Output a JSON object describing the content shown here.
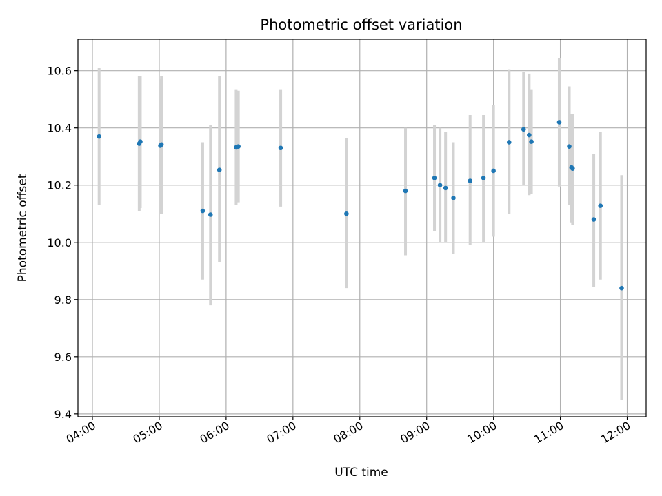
{
  "chart_data": {
    "type": "scatter",
    "title": "Photometric offset variation",
    "xlabel": "UTC time",
    "ylabel": "Photometric offset",
    "xlim": [
      "03:47",
      "12:17"
    ],
    "ylim": [
      9.39,
      10.71
    ],
    "xticks": [
      "04:00",
      "05:00",
      "06:00",
      "07:00",
      "08:00",
      "09:00",
      "10:00",
      "11:00",
      "12:00"
    ],
    "yticks": [
      9.4,
      9.6,
      9.8,
      10.0,
      10.2,
      10.4,
      10.6
    ],
    "ytick_labels": [
      "9.4",
      "9.6",
      "9.8",
      "10.0",
      "10.2",
      "10.4",
      "10.6"
    ],
    "grid": true,
    "marker_color": "#1f77b4",
    "errorbar_color": "#d3d3d3",
    "points": [
      {
        "t": "04:06",
        "y": 10.37,
        "lo": 10.13,
        "hi": 10.61
      },
      {
        "t": "04:42",
        "y": 10.345,
        "lo": 10.11,
        "hi": 10.58
      },
      {
        "t": "04:43",
        "y": 10.352,
        "lo": 10.12,
        "hi": 10.58
      },
      {
        "t": "05:01",
        "y": 10.338,
        "lo": 10.1,
        "hi": 10.57
      },
      {
        "t": "05:02",
        "y": 10.342,
        "lo": 10.1,
        "hi": 10.58
      },
      {
        "t": "05:39",
        "y": 10.11,
        "lo": 9.87,
        "hi": 10.35
      },
      {
        "t": "05:46",
        "y": 10.097,
        "lo": 9.78,
        "hi": 10.41
      },
      {
        "t": "05:54",
        "y": 10.253,
        "lo": 9.93,
        "hi": 10.58
      },
      {
        "t": "06:09",
        "y": 10.332,
        "lo": 10.13,
        "hi": 10.535
      },
      {
        "t": "06:11",
        "y": 10.335,
        "lo": 10.14,
        "hi": 10.53
      },
      {
        "t": "06:49",
        "y": 10.33,
        "lo": 10.125,
        "hi": 10.535
      },
      {
        "t": "07:48",
        "y": 10.1,
        "lo": 9.84,
        "hi": 10.365
      },
      {
        "t": "08:41",
        "y": 10.18,
        "lo": 9.955,
        "hi": 10.4
      },
      {
        "t": "09:07",
        "y": 10.225,
        "lo": 10.04,
        "hi": 10.41
      },
      {
        "t": "09:12",
        "y": 10.2,
        "lo": 10.0,
        "hi": 10.4
      },
      {
        "t": "09:17",
        "y": 10.19,
        "lo": 10.0,
        "hi": 10.385
      },
      {
        "t": "09:24",
        "y": 10.155,
        "lo": 9.96,
        "hi": 10.35
      },
      {
        "t": "09:39",
        "y": 10.215,
        "lo": 9.99,
        "hi": 10.445
      },
      {
        "t": "09:51",
        "y": 10.225,
        "lo": 10.0,
        "hi": 10.445
      },
      {
        "t": "10:00",
        "y": 10.25,
        "lo": 10.02,
        "hi": 10.48
      },
      {
        "t": "10:14",
        "y": 10.35,
        "lo": 10.1,
        "hi": 10.605
      },
      {
        "t": "10:27",
        "y": 10.395,
        "lo": 10.2,
        "hi": 10.595
      },
      {
        "t": "10:32",
        "y": 10.375,
        "lo": 10.165,
        "hi": 10.59
      },
      {
        "t": "10:34",
        "y": 10.352,
        "lo": 10.17,
        "hi": 10.535
      },
      {
        "t": "10:59",
        "y": 10.42,
        "lo": 10.195,
        "hi": 10.645
      },
      {
        "t": "11:08",
        "y": 10.335,
        "lo": 10.13,
        "hi": 10.545
      },
      {
        "t": "11:10",
        "y": 10.262,
        "lo": 10.07,
        "hi": 10.45
      },
      {
        "t": "11:11",
        "y": 10.258,
        "lo": 10.06,
        "hi": 10.45
      },
      {
        "t": "11:30",
        "y": 10.08,
        "lo": 9.845,
        "hi": 10.31
      },
      {
        "t": "11:36",
        "y": 10.128,
        "lo": 9.87,
        "hi": 10.385
      },
      {
        "t": "11:55",
        "y": 9.84,
        "lo": 9.45,
        "hi": 10.235
      }
    ]
  }
}
